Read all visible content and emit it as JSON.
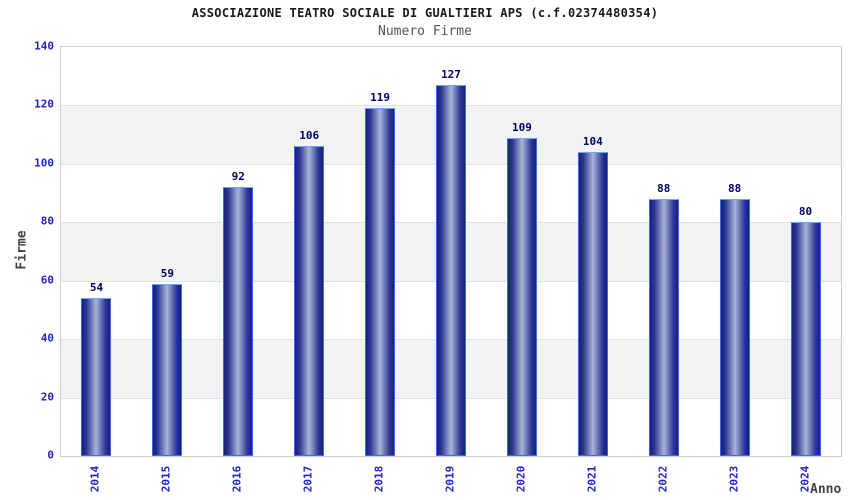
{
  "colors": {
    "tick": "#2222cc",
    "value_label": "#000066",
    "bar_dark": "#191f7a",
    "bar_mid": "#2c3795",
    "bar_light": "#aab4d8",
    "bar_border": "#3a6fe8",
    "bar_border_top": "#66aaff",
    "band_gray": "#f3f3f3",
    "gridline": "#e2e2e2",
    "plot_border": "#cccccc"
  },
  "chart_data": {
    "type": "bar",
    "title": "ASSOCIAZIONE TEATRO SOCIALE DI GUALTIERI APS (c.f.02374480354)",
    "subtitle": "Numero Firme",
    "xlabel": "Anno",
    "ylabel": "Firme",
    "categories": [
      "2014",
      "2015",
      "2016",
      "2017",
      "2018",
      "2019",
      "2020",
      "2021",
      "2022",
      "2023",
      "2024"
    ],
    "values": [
      54,
      59,
      92,
      106,
      119,
      127,
      109,
      104,
      88,
      88,
      80
    ],
    "ylim": [
      0,
      140
    ],
    "yticks": [
      0,
      20,
      40,
      60,
      80,
      100,
      120,
      140
    ],
    "grid": "horizontal-bands-alternating",
    "legend": "none",
    "bar_labels_shown": true
  }
}
